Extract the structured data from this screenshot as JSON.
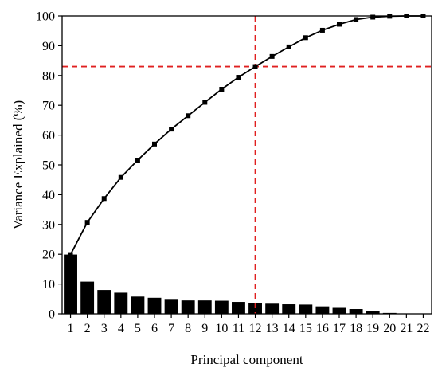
{
  "chart_data": {
    "type": "bar+line",
    "xlabel": "Principal component",
    "ylabel": "Variance Explained (%)",
    "ylim": [
      0,
      100
    ],
    "yticks": [
      0,
      10,
      20,
      30,
      40,
      50,
      60,
      70,
      80,
      90,
      100
    ],
    "categories": [
      "1",
      "2",
      "3",
      "4",
      "5",
      "6",
      "7",
      "8",
      "9",
      "10",
      "11",
      "12",
      "13",
      "14",
      "15",
      "16",
      "17",
      "18",
      "19",
      "20",
      "21",
      "22"
    ],
    "series": [
      {
        "kind": "bar",
        "values": [
          19.9,
          10.8,
          8.0,
          7.1,
          5.8,
          5.4,
          5.0,
          4.5,
          4.5,
          4.4,
          4.0,
          3.6,
          3.4,
          3.2,
          3.1,
          2.5,
          2.0,
          1.6,
          0.8,
          0.3,
          0.1,
          0.05
        ]
      },
      {
        "kind": "line",
        "values": [
          19.9,
          30.7,
          38.7,
          45.8,
          51.6,
          57.0,
          62.0,
          66.5,
          71.0,
          75.4,
          79.4,
          83.0,
          86.4,
          89.6,
          92.7,
          95.2,
          97.2,
          98.8,
          99.6,
          99.9,
          100.0,
          100.0
        ]
      }
    ],
    "reference_lines": {
      "color": "#e02020",
      "horizontal_y": 83,
      "vertical_x": "12"
    },
    "bar_color": "#000000",
    "line_color": "#000000",
    "grid": false
  }
}
